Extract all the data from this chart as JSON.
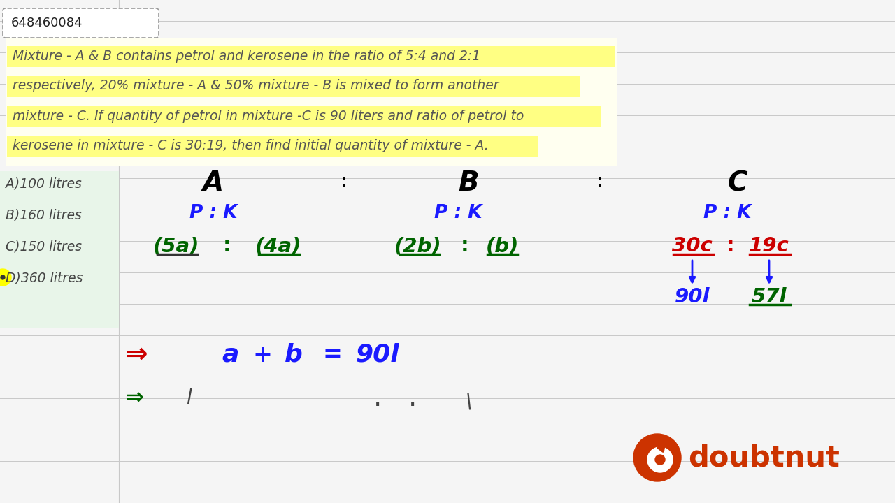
{
  "bg_color": "#f5f5f5",
  "notebook_line_color": "#c8c8c8",
  "question_id": "648460084",
  "question_text_line1": "Mixture - A & B contains petrol and kerosene in the ratio of 5:4 and 2:1",
  "question_text_line2": "respectively, 20% mixture - A & 50% mixture - B is mixed to form another",
  "question_text_line3": "mixture - C. If quantity of petrol in mixture -C is 90 liters and ratio of petrol to",
  "question_text_line4": "kerosene in mixture - C is 30:19, then find initial quantity of mixture - A.",
  "highlight_color": "#ffff88",
  "q_text_color": "#555555",
  "options": [
    "A)100 litres",
    "B)160 litres",
    "C)150 litres",
    "D)360 litres"
  ],
  "option_bg": "#e8f5e9",
  "option_text_color": "#444444",
  "pk_color": "#1a1aff",
  "ratio_A_color": "#006400",
  "ratio_B_color": "#006400",
  "ratio_C_color": "#cc0000",
  "arrow_color": "#1a1aff",
  "value_90l_color": "#1a1aff",
  "value_57l_color": "#006400",
  "eq_arrow_color": "#cc0000",
  "eq_text_color": "#1a1aff",
  "doubtnut_color": "#cc3300"
}
